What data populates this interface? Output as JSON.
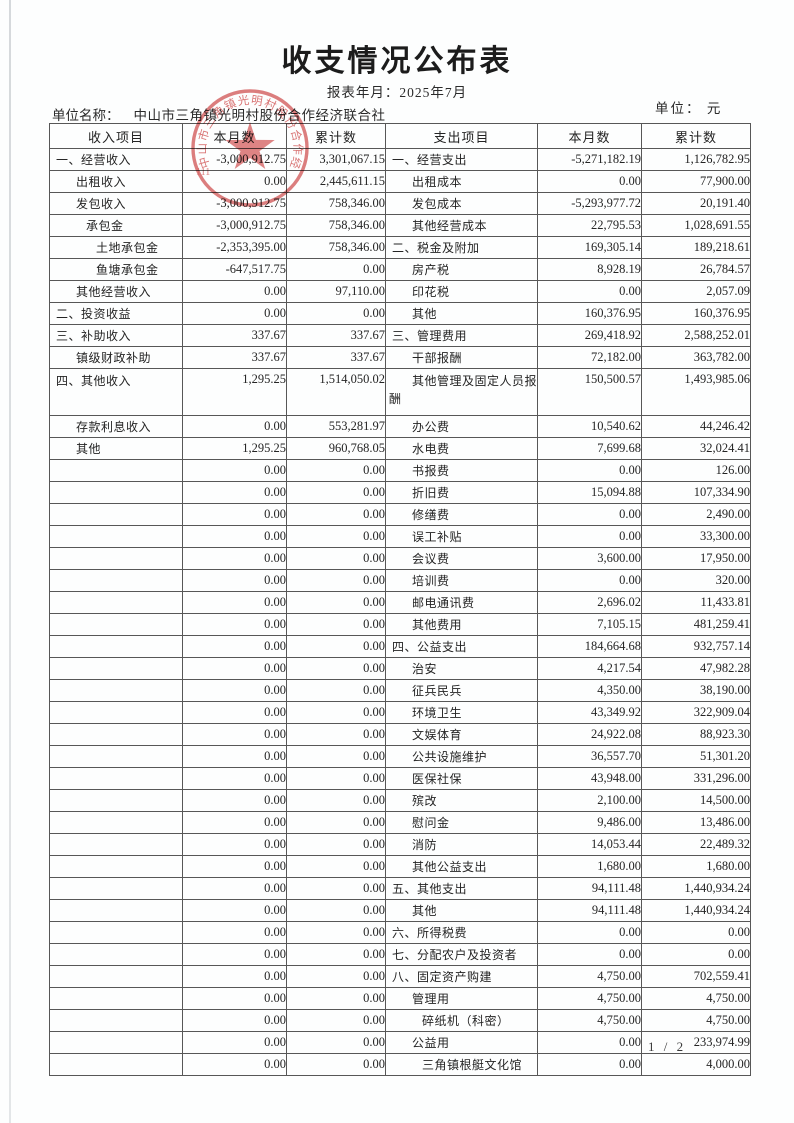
{
  "page": {
    "title": "收支情况公布表",
    "report_period": "报表年月：2025年7月",
    "unit_name_label": "单位名称：",
    "unit_name": "中山市三角镇光明村股份合作经济联合社",
    "currency_label": "单位： 元",
    "page_number": "1 / 2"
  },
  "stamp": {
    "org_text": "中山市三角镇光明村股份合作经济联合社",
    "code_fragment": "111",
    "color": "#cf4545"
  },
  "table": {
    "headers": {
      "income_item": "收入项目",
      "income_month": "本月数",
      "income_cumulative": "累计数",
      "expense_item": "支出项目",
      "expense_month": "本月数",
      "expense_cumulative": "累计数"
    },
    "rows": [
      {
        "income": [
          "一、经营收入",
          0,
          "-3,000,912.75",
          "3,301,067.15"
        ],
        "expense": [
          "一、经营支出",
          0,
          "-5,271,182.19",
          "1,126,782.95"
        ]
      },
      {
        "income": [
          "出租收入",
          1,
          "0.00",
          "2,445,611.15"
        ],
        "expense": [
          "出租成本",
          1,
          "0.00",
          "77,900.00"
        ]
      },
      {
        "income": [
          "发包收入",
          1,
          "-3,000,912.75",
          "758,346.00"
        ],
        "expense": [
          "发包成本",
          1,
          "-5,293,977.72",
          "20,191.40"
        ]
      },
      {
        "income": [
          "承包金",
          2,
          "-3,000,912.75",
          "758,346.00"
        ],
        "expense": [
          "其他经营成本",
          1,
          "22,795.53",
          "1,028,691.55"
        ]
      },
      {
        "income": [
          "土地承包金",
          3,
          "-2,353,395.00",
          "758,346.00"
        ],
        "expense": [
          "二、税金及附加",
          0,
          "169,305.14",
          "189,218.61"
        ]
      },
      {
        "income": [
          "鱼塘承包金",
          3,
          "-647,517.75",
          "0.00"
        ],
        "expense": [
          "房产税",
          1,
          "8,928.19",
          "26,784.57"
        ]
      },
      {
        "income": [
          "其他经营收入",
          1,
          "0.00",
          "97,110.00"
        ],
        "expense": [
          "印花税",
          1,
          "0.00",
          "2,057.09"
        ]
      },
      {
        "income": [
          "二、投资收益",
          0,
          "0.00",
          "0.00"
        ],
        "expense": [
          "其他",
          1,
          "160,376.95",
          "160,376.95"
        ]
      },
      {
        "income": [
          "三、补助收入",
          0,
          "337.67",
          "337.67"
        ],
        "expense": [
          "三、管理费用",
          0,
          "269,418.92",
          "2,588,252.01"
        ]
      },
      {
        "income": [
          "镇级财政补助",
          1,
          "337.67",
          "337.67"
        ],
        "expense": [
          "干部报酬",
          1,
          "72,182.00",
          "363,782.00"
        ]
      },
      {
        "tall": true,
        "hang": true,
        "income": [
          "四、其他收入",
          0,
          "1,295.25",
          "1,514,050.02"
        ],
        "expense": [
          "其他管理及固定人员报酬",
          1,
          "150,500.57",
          "1,493,985.06"
        ]
      },
      {
        "income": [
          "存款利息收入",
          1,
          "0.00",
          "553,281.97"
        ],
        "expense": [
          "办公费",
          1,
          "10,540.62",
          "44,246.42"
        ]
      },
      {
        "income": [
          "其他",
          1,
          "1,295.25",
          "960,768.05"
        ],
        "expense": [
          "水电费",
          1,
          "7,699.68",
          "32,024.41"
        ]
      },
      {
        "income": [
          "",
          1,
          "0.00",
          "0.00"
        ],
        "expense": [
          "书报费",
          1,
          "0.00",
          "126.00"
        ]
      },
      {
        "income": [
          "",
          1,
          "0.00",
          "0.00"
        ],
        "expense": [
          "折旧费",
          1,
          "15,094.88",
          "107,334.90"
        ]
      },
      {
        "income": [
          "",
          1,
          "0.00",
          "0.00"
        ],
        "expense": [
          "修缮费",
          1,
          "0.00",
          "2,490.00"
        ]
      },
      {
        "income": [
          "",
          1,
          "0.00",
          "0.00"
        ],
        "expense": [
          "误工补贴",
          1,
          "0.00",
          "33,300.00"
        ]
      },
      {
        "income": [
          "",
          1,
          "0.00",
          "0.00"
        ],
        "expense": [
          "会议费",
          1,
          "3,600.00",
          "17,950.00"
        ]
      },
      {
        "income": [
          "",
          1,
          "0.00",
          "0.00"
        ],
        "expense": [
          "培训费",
          1,
          "0.00",
          "320.00"
        ]
      },
      {
        "income": [
          "",
          1,
          "0.00",
          "0.00"
        ],
        "expense": [
          "邮电通讯费",
          1,
          "2,696.02",
          "11,433.81"
        ]
      },
      {
        "income": [
          "",
          1,
          "0.00",
          "0.00"
        ],
        "expense": [
          "其他费用",
          1,
          "7,105.15",
          "481,259.41"
        ]
      },
      {
        "income": [
          "",
          1,
          "0.00",
          "0.00"
        ],
        "expense": [
          "四、公益支出",
          0,
          "184,664.68",
          "932,757.14"
        ]
      },
      {
        "income": [
          "",
          1,
          "0.00",
          "0.00"
        ],
        "expense": [
          "治安",
          1,
          "4,217.54",
          "47,982.28"
        ]
      },
      {
        "income": [
          "",
          1,
          "0.00",
          "0.00"
        ],
        "expense": [
          "征兵民兵",
          1,
          "4,350.00",
          "38,190.00"
        ]
      },
      {
        "income": [
          "",
          1,
          "0.00",
          "0.00"
        ],
        "expense": [
          "环境卫生",
          1,
          "43,349.92",
          "322,909.04"
        ]
      },
      {
        "income": [
          "",
          1,
          "0.00",
          "0.00"
        ],
        "expense": [
          "文娱体育",
          1,
          "24,922.08",
          "88,923.30"
        ]
      },
      {
        "income": [
          "",
          1,
          "0.00",
          "0.00"
        ],
        "expense": [
          "公共设施维护",
          1,
          "36,557.70",
          "51,301.20"
        ]
      },
      {
        "income": [
          "",
          1,
          "0.00",
          "0.00"
        ],
        "expense": [
          "医保社保",
          1,
          "43,948.00",
          "331,296.00"
        ]
      },
      {
        "income": [
          "",
          1,
          "0.00",
          "0.00"
        ],
        "expense": [
          "殡改",
          1,
          "2,100.00",
          "14,500.00"
        ]
      },
      {
        "income": [
          "",
          1,
          "0.00",
          "0.00"
        ],
        "expense": [
          "慰问金",
          1,
          "9,486.00",
          "13,486.00"
        ]
      },
      {
        "income": [
          "",
          1,
          "0.00",
          "0.00"
        ],
        "expense": [
          "消防",
          1,
          "14,053.44",
          "22,489.32"
        ]
      },
      {
        "income": [
          "",
          1,
          "0.00",
          "0.00"
        ],
        "expense": [
          "其他公益支出",
          1,
          "1,680.00",
          "1,680.00"
        ]
      },
      {
        "income": [
          "",
          1,
          "0.00",
          "0.00"
        ],
        "expense": [
          "五、其他支出",
          0,
          "94,111.48",
          "1,440,934.24"
        ]
      },
      {
        "income": [
          "",
          1,
          "0.00",
          "0.00"
        ],
        "expense": [
          "其他",
          1,
          "94,111.48",
          "1,440,934.24"
        ]
      },
      {
        "income": [
          "",
          1,
          "0.00",
          "0.00"
        ],
        "expense": [
          "六、所得税费",
          0,
          "0.00",
          "0.00"
        ]
      },
      {
        "income": [
          "",
          1,
          "0.00",
          "0.00"
        ],
        "expense": [
          "七、分配农户及投资者",
          0,
          "0.00",
          "0.00"
        ]
      },
      {
        "income": [
          "",
          1,
          "0.00",
          "0.00"
        ],
        "expense": [
          "八、固定资产购建",
          0,
          "4,750.00",
          "702,559.41"
        ]
      },
      {
        "income": [
          "",
          1,
          "0.00",
          "0.00"
        ],
        "expense": [
          "管理用",
          1,
          "4,750.00",
          "4,750.00"
        ]
      },
      {
        "income": [
          "",
          1,
          "0.00",
          "0.00"
        ],
        "expense": [
          "碎纸机（科密）",
          2,
          "4,750.00",
          "4,750.00"
        ]
      },
      {
        "income": [
          "",
          1,
          "0.00",
          "0.00"
        ],
        "expense": [
          "公益用",
          1,
          "0.00",
          "233,974.99"
        ]
      },
      {
        "income": [
          "",
          1,
          "0.00",
          "0.00"
        ],
        "expense": [
          "三角镇根艇文化馆",
          2,
          "0.00",
          "4,000.00"
        ]
      }
    ]
  }
}
